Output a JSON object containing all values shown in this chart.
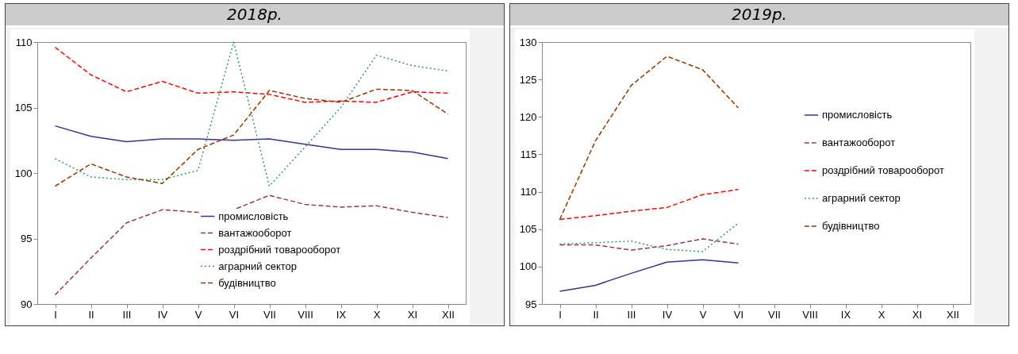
{
  "chart_data": [
    {
      "type": "line",
      "title": "2018р.",
      "categories": [
        "I",
        "II",
        "III",
        "IV",
        "V",
        "VI",
        "VII",
        "VIII",
        "IX",
        "X",
        "XI",
        "XII"
      ],
      "ylim": [
        90,
        110
      ],
      "yticks": [
        90,
        95,
        100,
        105,
        110
      ],
      "grid": false,
      "legend": "bottom",
      "marker": "none",
      "series": [
        {
          "name": "промисловість",
          "color": "#333399",
          "line_style": "solid",
          "values": [
            103.6,
            102.8,
            102.4,
            102.6,
            102.6,
            102.5,
            102.6,
            102.2,
            101.8,
            101.8,
            101.6,
            101.1
          ]
        },
        {
          "name": "вантажооборот",
          "color": "#993366",
          "line_style": "dashed",
          "values": [
            90.7,
            93.5,
            96.2,
            97.2,
            97.0,
            97.2,
            98.3,
            97.6,
            97.4,
            97.5,
            97.0,
            96.6
          ]
        },
        {
          "name": "роздрібний товарооборот",
          "color": "#ff0000",
          "line_style": "dashed",
          "values": [
            109.6,
            107.5,
            106.2,
            107.0,
            106.1,
            106.2,
            106.0,
            105.4,
            105.5,
            105.4,
            106.2,
            106.1
          ]
        },
        {
          "name": "аграрний сектор",
          "color": "#339966",
          "line_style": "dotted",
          "values": [
            101.1,
            99.7,
            99.5,
            99.5,
            100.2,
            110.0,
            99.0,
            102.0,
            105.0,
            109.0,
            108.2,
            107.8
          ]
        },
        {
          "name": "будівництво",
          "color": "#993300",
          "line_style": "dashed",
          "values": [
            99.0,
            100.7,
            99.7,
            99.2,
            101.8,
            102.9,
            106.3,
            105.7,
            105.4,
            106.4,
            106.3,
            104.5
          ]
        }
      ]
    },
    {
      "type": "line",
      "title": "2019р.",
      "categories": [
        "I",
        "II",
        "III",
        "IV",
        "V",
        "VI",
        "VII",
        "VIII",
        "IX",
        "X",
        "XI",
        "XII"
      ],
      "ylim": [
        95,
        130
      ],
      "yticks": [
        95,
        100,
        105,
        110,
        115,
        120,
        125,
        130
      ],
      "grid": false,
      "legend": "right",
      "marker": "none",
      "series": [
        {
          "name": "промисловість",
          "color": "#333399",
          "line_style": "solid",
          "values": [
            96.7,
            97.5,
            99.1,
            100.6,
            100.9,
            100.5,
            null,
            null,
            null,
            null,
            null,
            null
          ]
        },
        {
          "name": "вантажооборот",
          "color": "#993366",
          "line_style": "dashed",
          "values": [
            102.9,
            102.9,
            102.2,
            102.8,
            103.7,
            103.0,
            null,
            null,
            null,
            null,
            null,
            null
          ]
        },
        {
          "name": "роздрібний товарооборот",
          "color": "#ff0000",
          "line_style": "dashed",
          "values": [
            106.3,
            106.8,
            107.4,
            107.9,
            109.6,
            110.3,
            null,
            null,
            null,
            null,
            null,
            null
          ]
        },
        {
          "name": "аграрний сектор",
          "color": "#339966",
          "line_style": "dotted",
          "values": [
            103.0,
            103.2,
            103.4,
            102.3,
            102.0,
            105.8,
            null,
            null,
            null,
            null,
            null,
            null
          ]
        },
        {
          "name": "будівництво",
          "color": "#993300",
          "line_style": "dashed",
          "values": [
            106.3,
            116.8,
            124.2,
            128.1,
            126.3,
            121.2,
            null,
            null,
            null,
            null,
            null,
            null
          ]
        }
      ]
    }
  ]
}
